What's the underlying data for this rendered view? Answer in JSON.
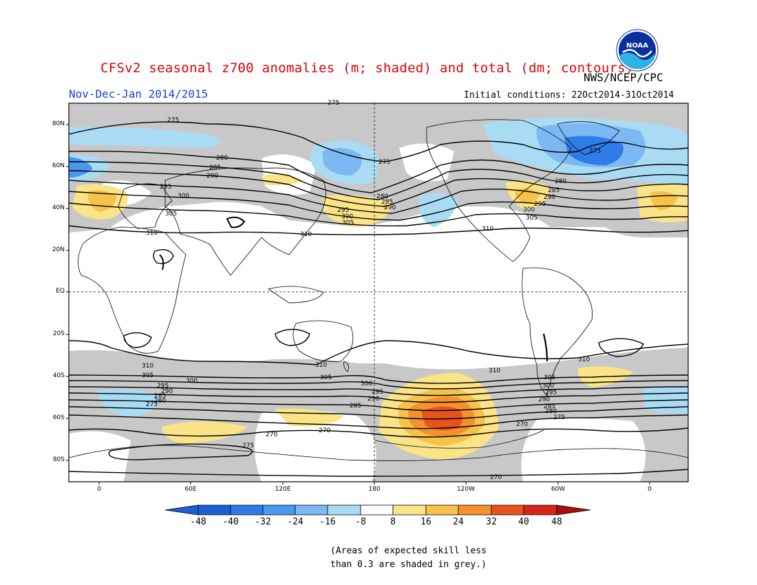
{
  "header": {
    "title": "CFSv2 seasonal z700 anomalies (m; shaded) and total (dm; contours)",
    "agency": "NWS/NCEP/CPC",
    "period": "Nov-Dec-Jan 2014/2015",
    "initial_conditions": "Initial conditions: 22Oct2014-31Oct2014",
    "logo_text": "NOAA"
  },
  "map": {
    "lat_labels": [
      "80N",
      "60N",
      "40N",
      "20N",
      "EQ",
      "20S",
      "40S",
      "60S",
      "80S"
    ],
    "lon_labels": [
      "0",
      "60E",
      "120E",
      "180",
      "120W",
      "60W",
      "0"
    ],
    "contour_labels_dm": [
      "275",
      "275",
      "280",
      "285",
      "290",
      "295",
      "300",
      "305",
      "310",
      "275",
      "280",
      "285",
      "290",
      "295",
      "300",
      "305",
      "310",
      "275",
      "280",
      "285",
      "290",
      "295",
      "305",
      "310",
      "310",
      "305",
      "300",
      "295",
      "290",
      "285",
      "280",
      "275",
      "270",
      "275",
      "270",
      "310",
      "305",
      "300",
      "295",
      "290",
      "285",
      "280",
      "275",
      "310",
      "270",
      "270",
      "275"
    ],
    "colors": {
      "skill_grey": "#c8c8c8",
      "land_outline": "#000000",
      "contour": "#000000"
    }
  },
  "colorbar": {
    "labels": [
      "-48",
      "-40",
      "-32",
      "-24",
      "-16",
      "-8",
      "8",
      "16",
      "24",
      "32",
      "40",
      "48"
    ],
    "colors": [
      "#1f5fd6",
      "#2f7ce8",
      "#4a97ee",
      "#7cb8f4",
      "#a9dcf4",
      "#d6f1f8",
      "#ffffff",
      "#fbe387",
      "#f7c24a",
      "#f3922c",
      "#e8521d",
      "#d8241a",
      "#a80d0d"
    ]
  },
  "footnote": {
    "line1": "(Areas of expected skill less",
    "line2": "than 0.3 are shaded in grey.)"
  }
}
